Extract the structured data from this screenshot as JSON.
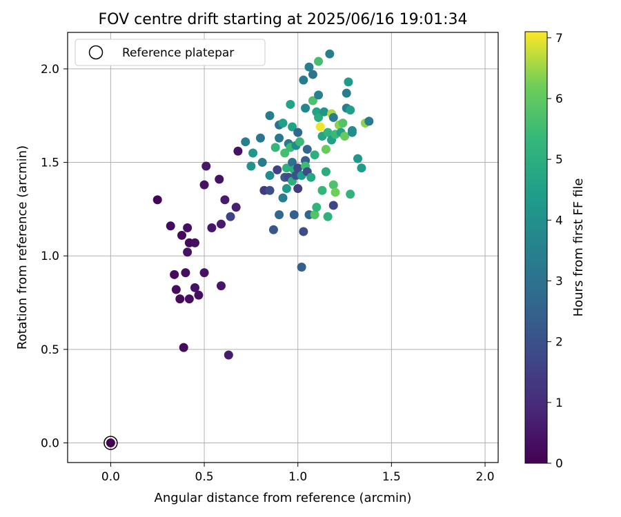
{
  "chart_data": {
    "type": "scatter",
    "title": "FOV centre drift starting at 2025/06/16 19:01:34",
    "xlabel": "Angular distance from reference (arcmin)",
    "ylabel": "Rotation from reference (arcmin)",
    "xlim": [
      -0.23,
      2.07
    ],
    "ylim": [
      -0.105,
      2.195
    ],
    "xticks": [
      0.0,
      0.5,
      1.0,
      1.5,
      2.0
    ],
    "xtick_labels": [
      "0.0",
      "0.5",
      "1.0",
      "1.5",
      "2.0"
    ],
    "yticks": [
      0.0,
      0.5,
      1.0,
      1.5,
      2.0
    ],
    "ytick_labels": [
      "0.0",
      "0.5",
      "1.0",
      "1.5",
      "2.0"
    ],
    "grid": true,
    "legend": {
      "placement": "top-left",
      "entries": [
        "Reference platepar"
      ]
    },
    "colorbar": {
      "label": "Hours from first FF file",
      "range": [
        0,
        7.1
      ],
      "ticks": [
        0,
        1,
        2,
        3,
        4,
        5,
        6,
        7
      ],
      "tick_labels": [
        "0",
        "1",
        "2",
        "3",
        "4",
        "5",
        "6",
        "7"
      ],
      "colormap": "viridis"
    },
    "reference_point": {
      "x": 0.0,
      "y": 0.0,
      "hours": 0
    },
    "points": [
      {
        "x": 0.25,
        "y": 1.3,
        "h": 0.1
      },
      {
        "x": 0.32,
        "y": 1.16,
        "h": 0.2
      },
      {
        "x": 0.38,
        "y": 1.11,
        "h": 0.2
      },
      {
        "x": 0.41,
        "y": 1.15,
        "h": 0.3
      },
      {
        "x": 0.42,
        "y": 1.07,
        "h": 0.2
      },
      {
        "x": 0.45,
        "y": 1.07,
        "h": 0.3
      },
      {
        "x": 0.41,
        "y": 1.02,
        "h": 0.4
      },
      {
        "x": 0.34,
        "y": 0.9,
        "h": 0.2
      },
      {
        "x": 0.4,
        "y": 0.91,
        "h": 0.3
      },
      {
        "x": 0.5,
        "y": 0.91,
        "h": 0.4
      },
      {
        "x": 0.35,
        "y": 0.82,
        "h": 0.3
      },
      {
        "x": 0.45,
        "y": 0.83,
        "h": 0.4
      },
      {
        "x": 0.37,
        "y": 0.77,
        "h": 0.2
      },
      {
        "x": 0.42,
        "y": 0.77,
        "h": 0.3
      },
      {
        "x": 0.47,
        "y": 0.79,
        "h": 0.3
      },
      {
        "x": 0.39,
        "y": 0.51,
        "h": 0.2
      },
      {
        "x": 0.63,
        "y": 0.47,
        "h": 0.6
      },
      {
        "x": 0.59,
        "y": 0.84,
        "h": 0.5
      },
      {
        "x": 0.51,
        "y": 1.48,
        "h": 0.5
      },
      {
        "x": 0.5,
        "y": 1.38,
        "h": 0.4
      },
      {
        "x": 0.58,
        "y": 1.41,
        "h": 0.4
      },
      {
        "x": 0.61,
        "y": 1.3,
        "h": 0.6
      },
      {
        "x": 0.67,
        "y": 1.26,
        "h": 0.7
      },
      {
        "x": 0.54,
        "y": 1.15,
        "h": 0.5
      },
      {
        "x": 0.59,
        "y": 1.17,
        "h": 0.6
      },
      {
        "x": 0.64,
        "y": 1.21,
        "h": 1.6
      },
      {
        "x": 0.68,
        "y": 1.56,
        "h": 0.4
      },
      {
        "x": 0.72,
        "y": 1.61,
        "h": 3.4
      },
      {
        "x": 0.75,
        "y": 1.48,
        "h": 4.1
      },
      {
        "x": 0.76,
        "y": 1.55,
        "h": 4.2
      },
      {
        "x": 0.8,
        "y": 1.63,
        "h": 3.1
      },
      {
        "x": 0.81,
        "y": 1.5,
        "h": 3.3
      },
      {
        "x": 0.82,
        "y": 1.35,
        "h": 1.4
      },
      {
        "x": 0.85,
        "y": 1.35,
        "h": 1.9
      },
      {
        "x": 0.85,
        "y": 1.75,
        "h": 3.3
      },
      {
        "x": 0.85,
        "y": 1.43,
        "h": 3.9
      },
      {
        "x": 0.87,
        "y": 1.14,
        "h": 2.2
      },
      {
        "x": 0.88,
        "y": 1.58,
        "h": 5.3
      },
      {
        "x": 0.89,
        "y": 1.46,
        "h": 1.6
      },
      {
        "x": 0.9,
        "y": 1.63,
        "h": 3.2
      },
      {
        "x": 0.9,
        "y": 1.7,
        "h": 3.0
      },
      {
        "x": 0.9,
        "y": 1.22,
        "h": 2.7
      },
      {
        "x": 0.92,
        "y": 1.31,
        "h": 3.4
      },
      {
        "x": 0.92,
        "y": 1.71,
        "h": 4.5
      },
      {
        "x": 0.93,
        "y": 1.42,
        "h": 2.3
      },
      {
        "x": 0.93,
        "y": 1.55,
        "h": 5.6
      },
      {
        "x": 0.94,
        "y": 1.47,
        "h": 5.1
      },
      {
        "x": 0.94,
        "y": 1.36,
        "h": 4.3
      },
      {
        "x": 0.95,
        "y": 1.6,
        "h": 3.2
      },
      {
        "x": 0.95,
        "y": 1.42,
        "h": 1.8
      },
      {
        "x": 0.96,
        "y": 1.81,
        "h": 4.6
      },
      {
        "x": 0.96,
        "y": 1.58,
        "h": 5.4
      },
      {
        "x": 0.97,
        "y": 1.69,
        "h": 4.6
      },
      {
        "x": 0.97,
        "y": 1.5,
        "h": 3.0
      },
      {
        "x": 0.97,
        "y": 1.4,
        "h": 5.0
      },
      {
        "x": 0.98,
        "y": 1.22,
        "h": 2.4
      },
      {
        "x": 0.98,
        "y": 1.46,
        "h": 5.0
      },
      {
        "x": 0.99,
        "y": 1.59,
        "h": 3.8
      },
      {
        "x": 0.99,
        "y": 1.43,
        "h": 2.1
      },
      {
        "x": 1.0,
        "y": 1.36,
        "h": 1.4
      },
      {
        "x": 1.0,
        "y": 1.47,
        "h": 1.9
      },
      {
        "x": 1.0,
        "y": 1.66,
        "h": 2.7
      },
      {
        "x": 1.01,
        "y": 1.61,
        "h": 5.4
      },
      {
        "x": 1.02,
        "y": 1.43,
        "h": 4.4
      },
      {
        "x": 1.02,
        "y": 0.94,
        "h": 2.4
      },
      {
        "x": 1.03,
        "y": 1.13,
        "h": 1.9
      },
      {
        "x": 1.03,
        "y": 1.94,
        "h": 3.3
      },
      {
        "x": 1.04,
        "y": 1.79,
        "h": 3.7
      },
      {
        "x": 1.04,
        "y": 1.51,
        "h": 2.4
      },
      {
        "x": 1.04,
        "y": 1.48,
        "h": 5.5
      },
      {
        "x": 1.05,
        "y": 1.57,
        "h": 2.6
      },
      {
        "x": 1.05,
        "y": 1.45,
        "h": 1.8
      },
      {
        "x": 1.06,
        "y": 2.01,
        "h": 3.4
      },
      {
        "x": 1.06,
        "y": 1.22,
        "h": 2.6
      },
      {
        "x": 1.07,
        "y": 1.42,
        "h": 4.8
      },
      {
        "x": 1.08,
        "y": 1.83,
        "h": 5.7
      },
      {
        "x": 1.08,
        "y": 1.97,
        "h": 3.1
      },
      {
        "x": 1.09,
        "y": 1.22,
        "h": 5.8
      },
      {
        "x": 1.09,
        "y": 1.54,
        "h": 5.0
      },
      {
        "x": 1.1,
        "y": 1.77,
        "h": 4.6
      },
      {
        "x": 1.1,
        "y": 1.26,
        "h": 5.2
      },
      {
        "x": 1.11,
        "y": 1.86,
        "h": 3.5
      },
      {
        "x": 1.11,
        "y": 2.04,
        "h": 5.6
      },
      {
        "x": 1.11,
        "y": 1.74,
        "h": 4.9
      },
      {
        "x": 1.12,
        "y": 1.69,
        "h": 7.0
      },
      {
        "x": 1.13,
        "y": 1.64,
        "h": 4.7
      },
      {
        "x": 1.13,
        "y": 1.35,
        "h": 5.3
      },
      {
        "x": 1.14,
        "y": 1.77,
        "h": 4.1
      },
      {
        "x": 1.15,
        "y": 1.57,
        "h": 6.1
      },
      {
        "x": 1.15,
        "y": 1.45,
        "h": 4.9
      },
      {
        "x": 1.16,
        "y": 1.21,
        "h": 5.1
      },
      {
        "x": 1.16,
        "y": 1.66,
        "h": 5.2
      },
      {
        "x": 1.17,
        "y": 2.08,
        "h": 3.4
      },
      {
        "x": 1.18,
        "y": 1.62,
        "h": 4.5
      },
      {
        "x": 1.18,
        "y": 1.76,
        "h": 6.6
      },
      {
        "x": 1.19,
        "y": 1.74,
        "h": 3.3
      },
      {
        "x": 1.19,
        "y": 1.27,
        "h": 1.7
      },
      {
        "x": 1.19,
        "y": 1.38,
        "h": 5.7
      },
      {
        "x": 1.2,
        "y": 1.65,
        "h": 5.4
      },
      {
        "x": 1.2,
        "y": 1.34,
        "h": 6.2
      },
      {
        "x": 1.22,
        "y": 1.7,
        "h": 6.4
      },
      {
        "x": 1.23,
        "y": 1.66,
        "h": 4.6
      },
      {
        "x": 1.24,
        "y": 1.71,
        "h": 5.8
      },
      {
        "x": 1.25,
        "y": 1.64,
        "h": 6.1
      },
      {
        "x": 1.26,
        "y": 1.87,
        "h": 3.3
      },
      {
        "x": 1.26,
        "y": 1.79,
        "h": 3.4
      },
      {
        "x": 1.27,
        "y": 1.93,
        "h": 4.3
      },
      {
        "x": 1.28,
        "y": 1.33,
        "h": 5.2
      },
      {
        "x": 1.28,
        "y": 1.78,
        "h": 4.5
      },
      {
        "x": 1.29,
        "y": 1.66,
        "h": 4.0
      },
      {
        "x": 1.29,
        "y": 1.67,
        "h": 3.9
      },
      {
        "x": 1.32,
        "y": 1.52,
        "h": 4.2
      },
      {
        "x": 1.34,
        "y": 1.47,
        "h": 4.4
      },
      {
        "x": 1.36,
        "y": 1.71,
        "h": 6.4
      },
      {
        "x": 1.38,
        "y": 1.72,
        "h": 3.3
      }
    ]
  }
}
